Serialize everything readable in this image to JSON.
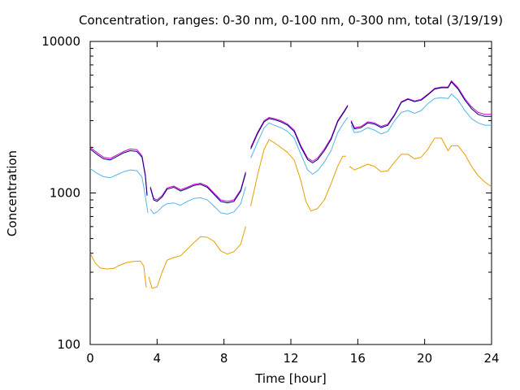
{
  "chart_data": {
    "type": "line",
    "title": "Concentration, ranges: 0-30 nm, 0-100 nm, 0-300 nm, total (3/19/19)",
    "xlabel": "Time [hour]",
    "ylabel": "Concentration",
    "xlim": [
      0,
      24
    ],
    "ylim": [
      100,
      10000
    ],
    "y_scale": "log",
    "x_ticks": [
      0,
      4,
      8,
      12,
      16,
      20,
      24
    ],
    "y_ticks": [
      100,
      1000,
      10000
    ],
    "x_tick_labels": [
      "0",
      "4",
      "8",
      "12",
      "16",
      "20",
      "24"
    ],
    "y_tick_labels": [
      "100",
      "1000",
      "10000"
    ],
    "grid": false,
    "legend": "none",
    "series": [
      {
        "color": "#e69f00",
        "segments": [
          [
            [
              0.0,
              400
            ],
            [
              0.3,
              345
            ],
            [
              0.6,
              320
            ],
            [
              1.0,
              315
            ],
            [
              1.4,
              318
            ],
            [
              1.8,
              335
            ],
            [
              2.2,
              348
            ],
            [
              2.6,
              353
            ],
            [
              3.0,
              355
            ],
            [
              3.2,
              330
            ],
            [
              3.35,
              238
            ]
          ],
          [
            [
              3.5,
              280
            ],
            [
              3.7,
              235
            ],
            [
              4.0,
              240
            ],
            [
              4.3,
              300
            ],
            [
              4.6,
              360
            ],
            [
              5.0,
              375
            ],
            [
              5.4,
              385
            ],
            [
              5.8,
              425
            ],
            [
              6.2,
              470
            ],
            [
              6.6,
              515
            ],
            [
              7.0,
              510
            ],
            [
              7.4,
              480
            ],
            [
              7.8,
              415
            ],
            [
              8.2,
              395
            ],
            [
              8.6,
              410
            ],
            [
              9.0,
              460
            ],
            [
              9.3,
              600
            ]
          ],
          [
            [
              9.6,
              820
            ],
            [
              10.0,
              1300
            ],
            [
              10.4,
              1950
            ],
            [
              10.7,
              2250
            ],
            [
              11.0,
              2150
            ],
            [
              11.4,
              2000
            ],
            [
              11.8,
              1850
            ],
            [
              12.2,
              1650
            ],
            [
              12.6,
              1200
            ],
            [
              12.9,
              880
            ],
            [
              13.2,
              760
            ],
            [
              13.6,
              790
            ],
            [
              14.0,
              900
            ],
            [
              14.4,
              1150
            ],
            [
              14.8,
              1500
            ],
            [
              15.1,
              1750
            ],
            [
              15.3,
              1750
            ]
          ],
          [
            [
              15.5,
              1500
            ],
            [
              15.8,
              1420
            ],
            [
              16.2,
              1480
            ],
            [
              16.6,
              1550
            ],
            [
              17.0,
              1500
            ],
            [
              17.4,
              1380
            ],
            [
              17.8,
              1400
            ],
            [
              18.2,
              1600
            ],
            [
              18.6,
              1800
            ],
            [
              19.0,
              1800
            ],
            [
              19.4,
              1680
            ],
            [
              19.8,
              1720
            ],
            [
              20.2,
              1950
            ],
            [
              20.6,
              2300
            ],
            [
              21.0,
              2300
            ],
            [
              21.4,
              1900
            ],
            [
              21.6,
              2050
            ],
            [
              22.0,
              2050
            ],
            [
              22.4,
              1800
            ],
            [
              22.8,
              1500
            ],
            [
              23.2,
              1300
            ],
            [
              23.6,
              1180
            ],
            [
              24.0,
              1100
            ]
          ]
        ]
      },
      {
        "color": "#56b4e9",
        "segments": [
          [
            [
              0.0,
              1450
            ],
            [
              0.4,
              1350
            ],
            [
              0.8,
              1280
            ],
            [
              1.2,
              1260
            ],
            [
              1.6,
              1320
            ],
            [
              2.0,
              1380
            ],
            [
              2.4,
              1420
            ],
            [
              2.8,
              1400
            ],
            [
              3.1,
              1270
            ],
            [
              3.3,
              950
            ],
            [
              3.45,
              740
            ]
          ],
          [
            [
              3.6,
              780
            ],
            [
              3.8,
              730
            ],
            [
              4.0,
              750
            ],
            [
              4.3,
              810
            ],
            [
              4.6,
              850
            ],
            [
              5.0,
              860
            ],
            [
              5.4,
              830
            ],
            [
              5.8,
              880
            ],
            [
              6.2,
              920
            ],
            [
              6.6,
              930
            ],
            [
              7.0,
              900
            ],
            [
              7.4,
              820
            ],
            [
              7.8,
              740
            ],
            [
              8.2,
              725
            ],
            [
              8.6,
              750
            ],
            [
              9.0,
              850
            ],
            [
              9.3,
              1100
            ]
          ],
          [
            [
              9.6,
              1700
            ],
            [
              10.0,
              2150
            ],
            [
              10.4,
              2700
            ],
            [
              10.7,
              2900
            ],
            [
              11.0,
              2800
            ],
            [
              11.4,
              2700
            ],
            [
              11.8,
              2550
            ],
            [
              12.2,
              2300
            ],
            [
              12.6,
              1800
            ],
            [
              13.0,
              1420
            ],
            [
              13.3,
              1330
            ],
            [
              13.6,
              1400
            ],
            [
              14.0,
              1600
            ],
            [
              14.4,
              1900
            ],
            [
              14.8,
              2500
            ],
            [
              15.2,
              2950
            ],
            [
              15.4,
              3150
            ]
          ],
          [
            [
              15.6,
              2800
            ],
            [
              15.8,
              2500
            ],
            [
              16.2,
              2550
            ],
            [
              16.6,
              2700
            ],
            [
              17.0,
              2600
            ],
            [
              17.4,
              2450
            ],
            [
              17.8,
              2550
            ],
            [
              18.2,
              3000
            ],
            [
              18.6,
              3400
            ],
            [
              19.0,
              3500
            ],
            [
              19.4,
              3350
            ],
            [
              19.8,
              3500
            ],
            [
              20.2,
              3900
            ],
            [
              20.6,
              4200
            ],
            [
              21.0,
              4250
            ],
            [
              21.4,
              4200
            ],
            [
              21.6,
              4500
            ],
            [
              22.0,
              4100
            ],
            [
              22.4,
              3500
            ],
            [
              22.8,
              3100
            ],
            [
              23.2,
              2900
            ],
            [
              23.6,
              2800
            ],
            [
              24.0,
              2800
            ]
          ]
        ]
      },
      {
        "color": "#cc00cc",
        "segments": [
          [
            [
              0.0,
              2000
            ],
            [
              0.4,
              1850
            ],
            [
              0.8,
              1720
            ],
            [
              1.2,
              1690
            ],
            [
              1.6,
              1780
            ],
            [
              2.0,
              1880
            ],
            [
              2.4,
              1950
            ],
            [
              2.8,
              1930
            ],
            [
              3.1,
              1760
            ],
            [
              3.3,
              1320
            ],
            [
              3.4,
              980
            ]
          ],
          [
            [
              3.6,
              1100
            ],
            [
              3.8,
              920
            ],
            [
              4.0,
              900
            ],
            [
              4.3,
              960
            ],
            [
              4.6,
              1080
            ],
            [
              5.0,
              1110
            ],
            [
              5.4,
              1050
            ],
            [
              5.8,
              1090
            ],
            [
              6.2,
              1140
            ],
            [
              6.6,
              1160
            ],
            [
              7.0,
              1110
            ],
            [
              7.4,
              1000
            ],
            [
              7.8,
              900
            ],
            [
              8.2,
              880
            ],
            [
              8.6,
              900
            ],
            [
              9.0,
              1050
            ],
            [
              9.3,
              1380
            ]
          ],
          [
            [
              9.6,
              2000
            ],
            [
              10.0,
              2500
            ],
            [
              10.4,
              3000
            ],
            [
              10.7,
              3150
            ],
            [
              11.0,
              3100
            ],
            [
              11.4,
              3000
            ],
            [
              11.8,
              2850
            ],
            [
              12.2,
              2600
            ],
            [
              12.6,
              2050
            ],
            [
              13.0,
              1700
            ],
            [
              13.3,
              1620
            ],
            [
              13.6,
              1700
            ],
            [
              14.0,
              1950
            ],
            [
              14.4,
              2300
            ],
            [
              14.8,
              3000
            ],
            [
              15.2,
              3500
            ],
            [
              15.4,
              3800
            ]
          ],
          [
            [
              15.6,
              3000
            ],
            [
              15.8,
              2700
            ],
            [
              16.2,
              2750
            ],
            [
              16.6,
              2950
            ],
            [
              17.0,
              2900
            ],
            [
              17.4,
              2750
            ],
            [
              17.8,
              2850
            ],
            [
              18.2,
              3300
            ],
            [
              18.6,
              4000
            ],
            [
              19.0,
              4200
            ],
            [
              19.4,
              4050
            ],
            [
              19.8,
              4150
            ],
            [
              20.2,
              4500
            ],
            [
              20.6,
              4900
            ],
            [
              21.0,
              5000
            ],
            [
              21.4,
              5000
            ],
            [
              21.6,
              5500
            ],
            [
              22.0,
              4950
            ],
            [
              22.4,
              4200
            ],
            [
              22.8,
              3700
            ],
            [
              23.2,
              3400
            ],
            [
              23.6,
              3300
            ],
            [
              24.0,
              3300
            ]
          ]
        ]
      },
      {
        "color": "#000080",
        "segments": [
          [
            [
              0.0,
              1950
            ],
            [
              0.4,
              1800
            ],
            [
              0.8,
              1680
            ],
            [
              1.2,
              1650
            ],
            [
              1.6,
              1740
            ],
            [
              2.0,
              1840
            ],
            [
              2.4,
              1900
            ],
            [
              2.8,
              1880
            ],
            [
              3.1,
              1720
            ],
            [
              3.3,
              1290
            ],
            [
              3.4,
              960
            ]
          ],
          [
            [
              3.6,
              1080
            ],
            [
              3.8,
              900
            ],
            [
              4.0,
              880
            ],
            [
              4.3,
              940
            ],
            [
              4.6,
              1060
            ],
            [
              5.0,
              1090
            ],
            [
              5.4,
              1030
            ],
            [
              5.8,
              1070
            ],
            [
              6.2,
              1120
            ],
            [
              6.6,
              1140
            ],
            [
              7.0,
              1090
            ],
            [
              7.4,
              980
            ],
            [
              7.8,
              880
            ],
            [
              8.2,
              860
            ],
            [
              8.6,
              880
            ],
            [
              9.0,
              1030
            ],
            [
              9.3,
              1350
            ]
          ],
          [
            [
              9.6,
              1950
            ],
            [
              10.0,
              2450
            ],
            [
              10.4,
              2950
            ],
            [
              10.7,
              3100
            ],
            [
              11.0,
              3050
            ],
            [
              11.4,
              2950
            ],
            [
              11.8,
              2800
            ],
            [
              12.2,
              2550
            ],
            [
              12.6,
              2000
            ],
            [
              13.0,
              1660
            ],
            [
              13.3,
              1580
            ],
            [
              13.6,
              1660
            ],
            [
              14.0,
              1900
            ],
            [
              14.4,
              2250
            ],
            [
              14.8,
              2950
            ],
            [
              15.2,
              3450
            ],
            [
              15.4,
              3750
            ]
          ],
          [
            [
              15.6,
              2950
            ],
            [
              15.8,
              2650
            ],
            [
              16.2,
              2700
            ],
            [
              16.6,
              2900
            ],
            [
              17.0,
              2850
            ],
            [
              17.4,
              2700
            ],
            [
              17.8,
              2800
            ],
            [
              18.2,
              3250
            ],
            [
              18.6,
              3950
            ],
            [
              19.0,
              4150
            ],
            [
              19.4,
              4000
            ],
            [
              19.8,
              4100
            ],
            [
              20.2,
              4450
            ],
            [
              20.6,
              4850
            ],
            [
              21.0,
              4950
            ],
            [
              21.4,
              4950
            ],
            [
              21.6,
              5400
            ],
            [
              22.0,
              4850
            ],
            [
              22.4,
              4100
            ],
            [
              22.8,
              3600
            ],
            [
              23.2,
              3300
            ],
            [
              23.6,
              3200
            ],
            [
              24.0,
              3200
            ]
          ]
        ]
      }
    ]
  }
}
